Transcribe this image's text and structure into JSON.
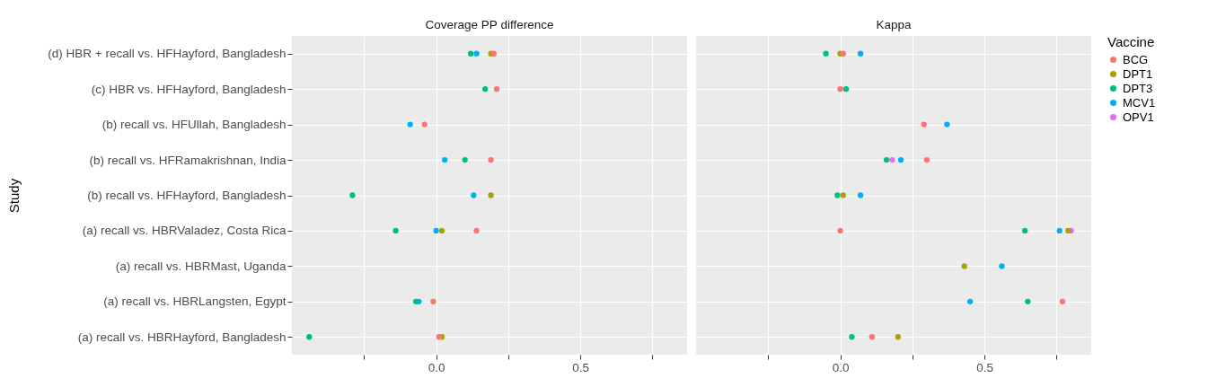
{
  "chart_data": [
    {
      "type": "scatter",
      "title": "Coverage PP difference",
      "ylabel": "Study",
      "orientation": "horizontal",
      "marker": "circle",
      "grid": true,
      "legend": "right",
      "categories": [
        "(d) HBR + recall vs. HFHayford, Bangladesh",
        "(c) HBR vs. HFHayford, Bangladesh",
        "(b) recall vs. HFUllah, Bangladesh",
        "(b) recall vs. HFRamakrishnan, India",
        "(b) recall vs. HFHayford, Bangladesh",
        "(a) recall vs. HBRValadez, Costa Rica",
        "(a) recall vs. HBRMast, Uganda",
        "(a) recall vs. HBRLangsten, Egypt",
        "(a) recall vs. HBRHayford, Bangladesh"
      ],
      "xlim": [
        -0.5,
        0.87
      ],
      "xticks": [
        {
          "value": -0.25,
          "label": null
        },
        {
          "value": 0,
          "label": "0.0"
        },
        {
          "value": 0.25,
          "label": null
        },
        {
          "value": 0.5,
          "label": "0.5"
        },
        {
          "value": 0.75,
          "label": null
        }
      ],
      "series": [
        {
          "name": "BCG",
          "color": "#f8766d",
          "values": [
            0.2,
            0.21,
            -0.04,
            0.19,
            null,
            0.14,
            null,
            -0.01,
            0.01
          ]
        },
        {
          "name": "DPT1",
          "color": "#a3a500",
          "values": [
            0.19,
            null,
            null,
            null,
            0.19,
            0.02,
            null,
            null,
            0.02
          ]
        },
        {
          "name": "DPT3",
          "color": "#00bf7d",
          "values": [
            0.12,
            0.17,
            null,
            0.1,
            -0.29,
            -0.14,
            null,
            -0.07,
            -0.44
          ]
        },
        {
          "name": "MCV1",
          "color": "#00b0f6",
          "values": [
            0.14,
            null,
            -0.09,
            0.03,
            0.13,
            0.0,
            null,
            -0.06,
            null
          ]
        }
      ]
    },
    {
      "type": "scatter",
      "title": "Kappa",
      "orientation": "horizontal",
      "marker": "circle",
      "grid": true,
      "legend": "right",
      "legend_title": "Vaccine",
      "tick_labels": "x",
      "categories": [
        "(d) HBR + recall vs. HFHayford, Bangladesh",
        "(c) HBR vs. HFHayford, Bangladesh",
        "(b) recall vs. HFUllah, Bangladesh",
        "(b) recall vs. HFRamakrishnan, India",
        "(b) recall vs. HFHayford, Bangladesh",
        "(a) recall vs. HBRValadez, Costa Rica",
        "(a) recall vs. HBRMast, Uganda",
        "(a) recall vs. HBRLangsten, Egypt",
        "(a) recall vs. HBRHayford, Bangladesh"
      ],
      "xlim": [
        -0.5,
        0.87
      ],
      "xticks": [
        {
          "value": -0.25,
          "label": null
        },
        {
          "value": 0,
          "label": "0.0"
        },
        {
          "value": 0.25,
          "label": null
        },
        {
          "value": 0.5,
          "label": "0.5"
        },
        {
          "value": 0.75,
          "label": null
        }
      ],
      "series": [
        {
          "name": "BCG",
          "color": "#f8766d",
          "values": [
            0.01,
            0.0,
            0.29,
            0.3,
            null,
            0.0,
            null,
            0.77,
            0.11
          ]
        },
        {
          "name": "DPT1",
          "color": "#a3a500",
          "values": [
            0.0,
            null,
            null,
            null,
            0.01,
            0.79,
            0.43,
            null,
            0.2
          ]
        },
        {
          "name": "DPT3",
          "color": "#00bf7d",
          "values": [
            -0.05,
            0.02,
            null,
            0.16,
            -0.01,
            0.64,
            null,
            0.65,
            0.04
          ]
        },
        {
          "name": "MCV1",
          "color": "#00b0f6",
          "values": [
            0.07,
            null,
            0.37,
            0.21,
            0.07,
            0.76,
            0.56,
            0.45,
            null
          ]
        },
        {
          "name": "OPV1",
          "color": "#e76bf3",
          "values": [
            null,
            null,
            null,
            0.18,
            null,
            0.8,
            null,
            null,
            null
          ]
        }
      ]
    }
  ]
}
